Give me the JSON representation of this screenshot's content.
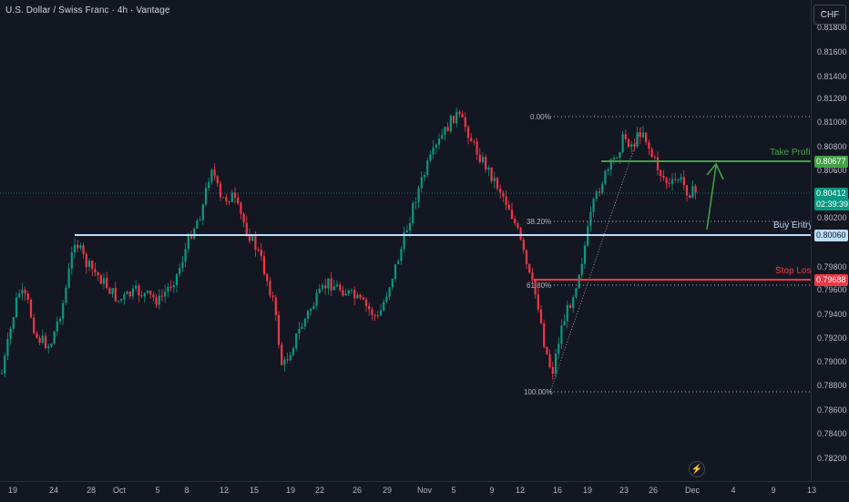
{
  "title": "U.S. Dollar / Swiss Franc · 4h · Vantage",
  "currency_button": "CHF",
  "price_axis": [
    "0.81800",
    "0.81600",
    "0.81400",
    "0.81200",
    "0.81000",
    "0.80800",
    "0.80600",
    "0.80200",
    "0.79800",
    "0.79600",
    "0.79400",
    "0.79200",
    "0.79000",
    "0.78800",
    "0.78600",
    "0.78400",
    "0.78200"
  ],
  "time_axis": [
    "19",
    "24",
    "28",
    "Oct",
    "5",
    "8",
    "12",
    "15",
    "19",
    "22",
    "26",
    "29",
    "Nov",
    "5",
    "9",
    "12",
    "16",
    "19",
    "23",
    "26",
    "Dec",
    "4",
    "9",
    "13"
  ],
  "annotations": {
    "take_profit_label": "Take Profit",
    "take_profit_price": "0.80677",
    "current_price": "0.80412",
    "countdown": "02:39:39",
    "buy_entry_label": "Buy Entry",
    "buy_entry_price": "0.80060",
    "stop_loss_label": "Stop Loss",
    "stop_loss_price": "0.79688"
  },
  "fib": {
    "level_0": "0.00%",
    "level_382": "38.20%",
    "level_618": "61.80%",
    "level_100": "100.00%"
  },
  "colors": {
    "background": "#131722",
    "bull": "#089981",
    "bear": "#f23645",
    "take_profit": "#43a047",
    "buy_entry": "#bbdefb",
    "stop_loss": "#f23645",
    "current_price": "#089981"
  },
  "icons": {
    "bolt": "lightning-icon",
    "arrow": "up-arrow-icon"
  }
}
